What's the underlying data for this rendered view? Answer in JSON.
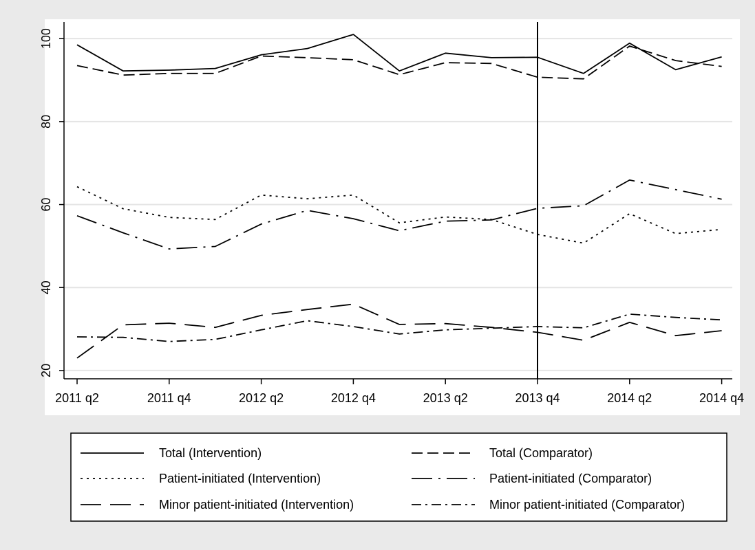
{
  "chart_data": {
    "type": "line",
    "title": "",
    "xlabel": "",
    "ylabel": "",
    "x_ticks": [
      "2011 q2",
      "2011 q4",
      "2012 q2",
      "2012 q4",
      "2013 q2",
      "2013 q4",
      "2014 q2",
      "2014 q4"
    ],
    "y_ticks": [
      20,
      40,
      60,
      80,
      100
    ],
    "ylim": [
      18,
      104
    ],
    "grid": true,
    "vertical_reference_line": "2013 q4",
    "legend_position": "bottom",
    "categories": [
      "2011 q2",
      "2011 q3",
      "2011 q4",
      "2012 q1",
      "2012 q2",
      "2012 q3",
      "2012 q4",
      "2013 q1",
      "2013 q2",
      "2013 q3",
      "2013 q4",
      "2014 q1",
      "2014 q2",
      "2014 q3",
      "2014 q4"
    ],
    "series": [
      {
        "name": "Total (Intervention)",
        "dash": "solid",
        "values": [
          98.5,
          92.2,
          92.4,
          92.8,
          96.1,
          97.6,
          101.0,
          92.2,
          96.5,
          95.4,
          95.5,
          91.6,
          98.9,
          92.5,
          95.6
        ]
      },
      {
        "name": "Total (Comparator)",
        "dash": "dash",
        "values": [
          93.5,
          91.2,
          91.6,
          91.6,
          95.8,
          95.4,
          94.9,
          91.3,
          94.2,
          94.0,
          90.7,
          90.3,
          98.2,
          94.7,
          93.3
        ]
      },
      {
        "name": "Patient-initiated (Intervention)",
        "dash": "dot",
        "values": [
          64.3,
          59.0,
          56.9,
          56.4,
          62.3,
          61.4,
          62.3,
          55.6,
          57.0,
          56.4,
          52.8,
          50.7,
          57.8,
          53.0,
          54.0
        ]
      },
      {
        "name": "Patient-initiated (Comparator)",
        "dash": "longdashdot",
        "values": [
          57.3,
          53.2,
          49.3,
          49.9,
          55.3,
          58.6,
          56.6,
          53.7,
          56.0,
          56.3,
          59.1,
          59.7,
          65.9,
          63.6,
          61.3
        ]
      },
      {
        "name": "Minor patient-initiated (Intervention)",
        "dash": "longdash",
        "values": [
          23.0,
          31.0,
          31.4,
          30.4,
          33.3,
          34.7,
          36.0,
          31.1,
          31.3,
          30.4,
          29.2,
          27.3,
          31.6,
          28.4,
          29.6
        ]
      },
      {
        "name": "Minor patient-initiated (Comparator)",
        "dash": "dashdot",
        "values": [
          28.1,
          28.0,
          27.0,
          27.5,
          29.8,
          32.0,
          30.6,
          28.8,
          29.8,
          30.2,
          30.6,
          30.3,
          33.6,
          32.8,
          32.2
        ]
      }
    ]
  }
}
